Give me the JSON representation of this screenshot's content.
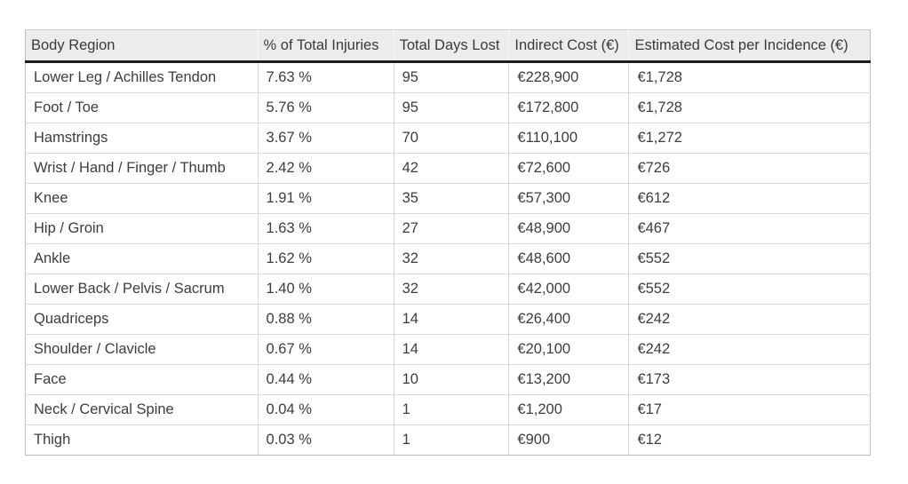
{
  "table": {
    "title": "injury-cost-table",
    "columns": [
      "Body Region",
      "% of Total Injuries",
      "Total Days Lost",
      "Indirect Cost (€)",
      "Estimated Cost per Incidence (€)"
    ],
    "rows": [
      [
        "Lower Leg / Achilles Tendon",
        "7.63 %",
        "95",
        "€228,900",
        "€1,728"
      ],
      [
        "Foot / Toe",
        "5.76 %",
        "95",
        "€172,800",
        "€1,728"
      ],
      [
        "Hamstrings",
        "3.67 %",
        "70",
        "€110,100",
        "€1,272"
      ],
      [
        "Wrist / Hand / Finger / Thumb",
        "2.42 %",
        "42",
        "€72,600",
        "€726"
      ],
      [
        "Knee",
        "1.91 %",
        "35",
        "€57,300",
        "€612"
      ],
      [
        "Hip / Groin",
        "1.63 %",
        "27",
        "€48,900",
        "€467"
      ],
      [
        "Ankle",
        "1.62 %",
        "32",
        "€48,600",
        "€552"
      ],
      [
        "Lower Back / Pelvis / Sacrum",
        "1.40 %",
        "32",
        "€42,000",
        "€552"
      ],
      [
        "Quadriceps",
        "0.88 %",
        "14",
        "€26,400",
        "€242"
      ],
      [
        "Shoulder / Clavicle",
        "0.67 %",
        "14",
        "€20,100",
        "€242"
      ],
      [
        "Face",
        "0.44 %",
        "10",
        "€13,200",
        "€173"
      ],
      [
        "Neck / Cervical Spine",
        "0.04 %",
        "1",
        "€1,200",
        "€17"
      ],
      [
        "Thigh",
        "0.03 %",
        "1",
        "€900",
        "€12"
      ]
    ],
    "colors": {
      "header_bg": "#ececec",
      "header_rule": "#1d1d1d",
      "grid_line": "#d9d9d9",
      "outer_border": "#bdbdbd",
      "text": "#3d3d3d",
      "page_bg": "#ffffff"
    }
  },
  "chart_data": {
    "type": "table",
    "title": "",
    "columns": [
      "Body Region",
      "% of Total Injuries",
      "Total Days Lost",
      "Indirect Cost (€)",
      "Estimated Cost per Incidence (€)"
    ],
    "rows": [
      {
        "body_region": "Lower Leg / Achilles Tendon",
        "pct_total_injuries": 7.63,
        "total_days_lost": 95,
        "indirect_cost_eur": 228900,
        "est_cost_per_incidence_eur": 1728
      },
      {
        "body_region": "Foot / Toe",
        "pct_total_injuries": 5.76,
        "total_days_lost": 95,
        "indirect_cost_eur": 172800,
        "est_cost_per_incidence_eur": 1728
      },
      {
        "body_region": "Hamstrings",
        "pct_total_injuries": 3.67,
        "total_days_lost": 70,
        "indirect_cost_eur": 110100,
        "est_cost_per_incidence_eur": 1272
      },
      {
        "body_region": "Wrist / Hand / Finger / Thumb",
        "pct_total_injuries": 2.42,
        "total_days_lost": 42,
        "indirect_cost_eur": 72600,
        "est_cost_per_incidence_eur": 726
      },
      {
        "body_region": "Knee",
        "pct_total_injuries": 1.91,
        "total_days_lost": 35,
        "indirect_cost_eur": 57300,
        "est_cost_per_incidence_eur": 612
      },
      {
        "body_region": "Hip / Groin",
        "pct_total_injuries": 1.63,
        "total_days_lost": 27,
        "indirect_cost_eur": 48900,
        "est_cost_per_incidence_eur": 467
      },
      {
        "body_region": "Ankle",
        "pct_total_injuries": 1.62,
        "total_days_lost": 32,
        "indirect_cost_eur": 48600,
        "est_cost_per_incidence_eur": 552
      },
      {
        "body_region": "Lower Back / Pelvis / Sacrum",
        "pct_total_injuries": 1.4,
        "total_days_lost": 32,
        "indirect_cost_eur": 42000,
        "est_cost_per_incidence_eur": 552
      },
      {
        "body_region": "Quadriceps",
        "pct_total_injuries": 0.88,
        "total_days_lost": 14,
        "indirect_cost_eur": 26400,
        "est_cost_per_incidence_eur": 242
      },
      {
        "body_region": "Shoulder / Clavicle",
        "pct_total_injuries": 0.67,
        "total_days_lost": 14,
        "indirect_cost_eur": 20100,
        "est_cost_per_incidence_eur": 242
      },
      {
        "body_region": "Face",
        "pct_total_injuries": 0.44,
        "total_days_lost": 10,
        "indirect_cost_eur": 13200,
        "est_cost_per_incidence_eur": 173
      },
      {
        "body_region": "Neck / Cervical Spine",
        "pct_total_injuries": 0.04,
        "total_days_lost": 1,
        "indirect_cost_eur": 1200,
        "est_cost_per_incidence_eur": 17
      },
      {
        "body_region": "Thigh",
        "pct_total_injuries": 0.03,
        "total_days_lost": 1,
        "indirect_cost_eur": 900,
        "est_cost_per_incidence_eur": 12
      }
    ]
  }
}
